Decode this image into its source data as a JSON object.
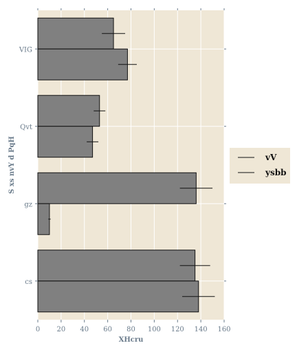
{
  "colors": {
    "plot_background": "#efe7d6",
    "bar_fill": "#808080",
    "bar_edge": "#111111",
    "grid": "#ffffff",
    "tick_text": "#6a7b8b",
    "legend_background": "#efe7d6"
  },
  "chart_data": {
    "type": "bar",
    "orientation": "horizontal",
    "categories": [
      "VIG",
      "Qvt",
      "gz",
      "cs"
    ],
    "series": [
      {
        "name": "vV",
        "values": [
          65,
          53,
          136,
          135
        ],
        "errors": [
          10,
          5,
          14,
          13
        ]
      },
      {
        "name": "ysbb",
        "values": [
          77,
          47,
          10,
          138
        ],
        "errors": [
          8,
          5,
          1,
          14
        ]
      }
    ],
    "xlabel": "XHcru",
    "ylabel": "S xs nvY d PqH",
    "xlim": [
      0,
      160
    ],
    "xticks": [
      "0",
      "20",
      "40",
      "60",
      "80",
      "100",
      "120",
      "140",
      "160"
    ],
    "grid": true,
    "legend": "right"
  }
}
